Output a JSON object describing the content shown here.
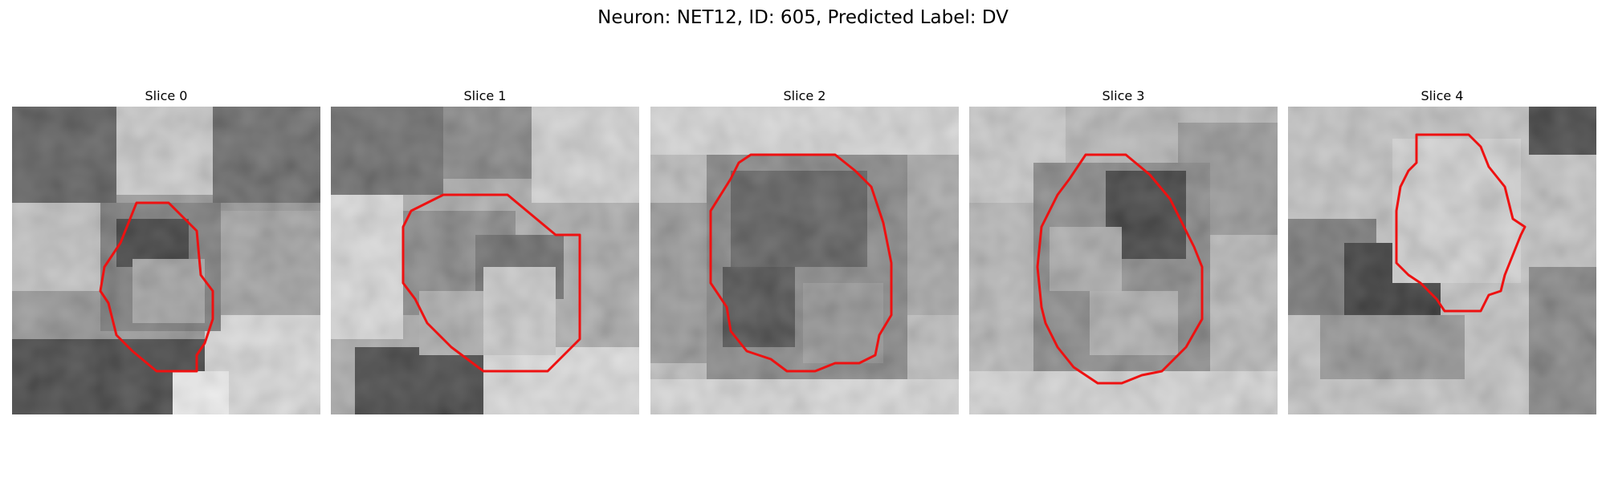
{
  "figure": {
    "title": "Neuron: NET12, ID: 605, Predicted Label: DV"
  },
  "panels": [
    {
      "title": "Slice 0"
    },
    {
      "title": "Slice 1"
    },
    {
      "title": "Slice 2"
    },
    {
      "title": "Slice 3"
    },
    {
      "title": "Slice 4"
    }
  ],
  "style": {
    "contour_color": "#ee1111",
    "colormap": "grayscale"
  }
}
